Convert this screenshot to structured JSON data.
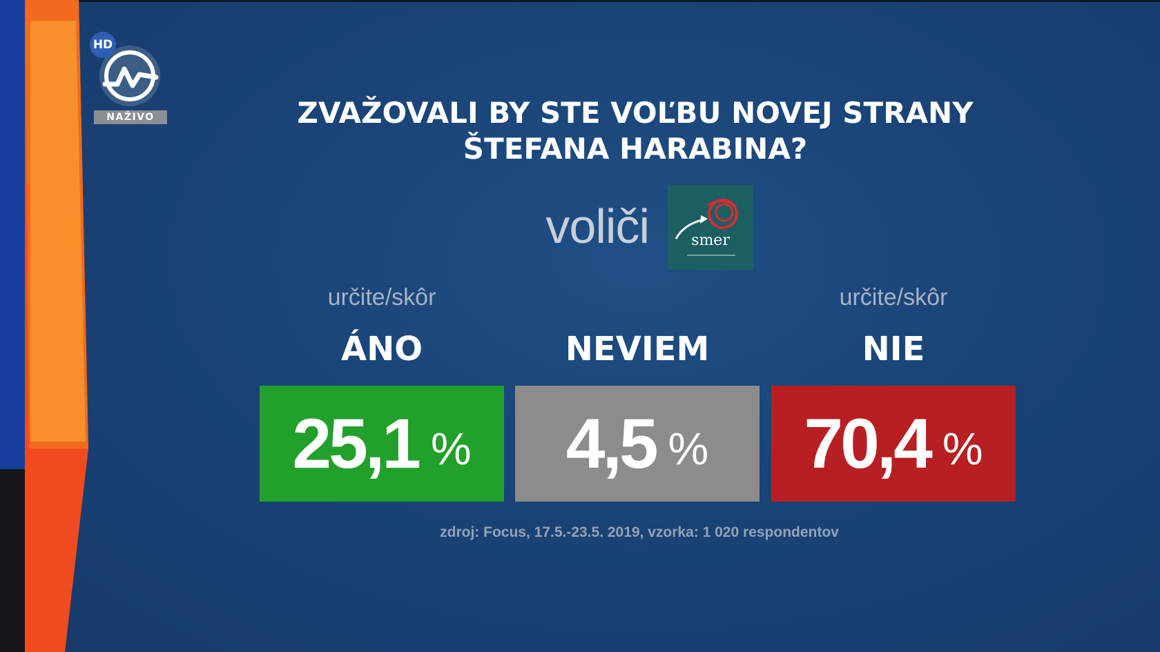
{
  "channel": {
    "hd_badge": "HD",
    "live_label": "NAŽIVO"
  },
  "question": {
    "line1": "ZVAŽOVALI BY STE VOĽBU NOVEJ STRANY",
    "line2": "ŠTEFANA HARABINA?"
  },
  "segment": {
    "label": "voliči",
    "party_logo_text": "smer"
  },
  "answers": [
    {
      "sublabel": "určite/skôr",
      "label": "ÁNO",
      "value": "25,1",
      "unit": "%",
      "color": "#22a02c"
    },
    {
      "sublabel": "",
      "label": "NEVIEM",
      "value": "4,5",
      "unit": "%",
      "color": "#8c8c8c"
    },
    {
      "sublabel": "určite/skôr",
      "label": "NIE",
      "value": "70,4",
      "unit": "%",
      "color": "#b81f22"
    }
  ],
  "source": "zdroj: Focus, 17.5.-23.5. 2019, vzorka: 1 020 respondentov",
  "colors": {
    "background": "#1a4376",
    "orange_band_top": "#f26a1f",
    "orange_band_inner": "#f7902a",
    "orange_band_bottom": "#f24a1c"
  }
}
